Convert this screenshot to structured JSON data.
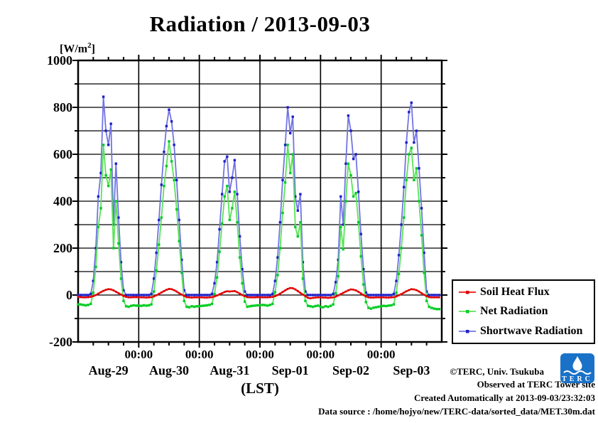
{
  "title": "Radiation / 2013-09-03",
  "y_axis": {
    "unit_prefix": "[W/m",
    "unit_sup": "2",
    "unit_suffix": "]"
  },
  "x_axis": {
    "time_tick_label": "00:00",
    "axis_label": "(LST)"
  },
  "credits": {
    "line1": "©TERC, Univ. Tsukuba",
    "line2": "Observed at TERC Tower site",
    "line3": "Created Automatically at 2013-09-03/23:32:03",
    "line4": "Data source : /home/hojyo/new/TERC-data/sorted_data/MET.30m.dat"
  },
  "logo": {
    "text": "TERC",
    "color": "#1a72c8"
  },
  "chart_data": {
    "type": "line",
    "title": "Radiation / 2013-09-03",
    "ylabel": "[W/m2]",
    "xlabel": "(LST)",
    "ylim": [
      -200,
      1000
    ],
    "y_major_ticks": [
      1000,
      800,
      600,
      400,
      200,
      0,
      -200
    ],
    "y_minor_step": 100,
    "grid": true,
    "grid_step_y": 100,
    "xlim": [
      0,
      144
    ],
    "x_unit": "hours since 2013-08-29 00:00 LST",
    "x_start": 0,
    "x_step_hours": 1,
    "x_minor_tick_hours": 6,
    "x_midnight_ticks": [
      24,
      48,
      72,
      96,
      120
    ],
    "x_day_labels": [
      "Aug-29",
      "Aug-30",
      "Aug-31",
      "Sep-01",
      "Sep-02",
      "Sep-03"
    ],
    "legend_position": "outside-right-bottom",
    "series": [
      {
        "name": "Soil Heat Flux",
        "line_color": "#ee1212",
        "marker_color": "#dd0000",
        "line_width": 2.4,
        "marker_size": 2.6,
        "values": [
          -8,
          -9,
          -10,
          -10,
          -9,
          -8,
          -5,
          0,
          6,
          12,
          18,
          22,
          25,
          24,
          20,
          14,
          8,
          2,
          -4,
          -8,
          -10,
          -10,
          -9,
          -9,
          -9,
          -10,
          -10,
          -11,
          -10,
          -9,
          -6,
          -1,
          5,
          11,
          17,
          22,
          26,
          25,
          21,
          15,
          8,
          2,
          -4,
          -9,
          -10,
          -11,
          -10,
          -10,
          -10,
          -10,
          -11,
          -11,
          -10,
          -9,
          -6,
          -2,
          3,
          8,
          13,
          16,
          15,
          16,
          17,
          12,
          6,
          0,
          -5,
          -9,
          -10,
          -10,
          -10,
          -9,
          -9,
          -10,
          -10,
          -10,
          -9,
          -8,
          -5,
          0,
          6,
          13,
          20,
          26,
          30,
          29,
          24,
          17,
          9,
          2,
          -5,
          -12,
          -14,
          -12,
          -11,
          -10,
          -10,
          -11,
          -11,
          -12,
          -11,
          -10,
          -7,
          -2,
          4,
          9,
          15,
          20,
          24,
          23,
          20,
          14,
          7,
          0,
          -6,
          -10,
          -11,
          -11,
          -10,
          -10,
          -10,
          -10,
          -11,
          -11,
          -10,
          -9,
          -6,
          -1,
          4,
          10,
          16,
          21,
          25,
          24,
          21,
          15,
          8,
          1,
          -5,
          -9,
          -10,
          -10,
          -10,
          -10
        ]
      },
      {
        "name": "Net Radiation",
        "line_color": "#58e358",
        "marker_color": "#00cc22",
        "line_width": 1.8,
        "marker_size": 3.4,
        "values": [
          -40,
          -40,
          -42,
          -44,
          -42,
          -38,
          10,
          120,
          290,
          370,
          640,
          510,
          465,
          535,
          200,
          400,
          220,
          70,
          -25,
          -48,
          -50,
          -46,
          -44,
          -45,
          -45,
          -46,
          -44,
          -45,
          -44,
          -40,
          15,
          105,
          215,
          330,
          465,
          550,
          655,
          570,
          490,
          365,
          230,
          95,
          -25,
          -50,
          -52,
          -48,
          -50,
          -48,
          -48,
          -46,
          -45,
          -44,
          -42,
          -38,
          5,
          75,
          185,
          305,
          420,
          465,
          320,
          370,
          440,
          310,
          160,
          50,
          -28,
          -50,
          -48,
          -46,
          -45,
          -44,
          -44,
          -42,
          -43,
          -45,
          -42,
          -38,
          12,
          85,
          200,
          350,
          480,
          640,
          520,
          600,
          290,
          250,
          310,
          70,
          -25,
          -46,
          -48,
          -50,
          -47,
          -45,
          -50,
          -52,
          -48,
          -50,
          -46,
          -40,
          8,
          80,
          290,
          195,
          400,
          560,
          510,
          420,
          435,
          310,
          165,
          45,
          -30,
          -55,
          -58,
          -54,
          -52,
          -50,
          -48,
          -46,
          -47,
          -45,
          -44,
          -40,
          10,
          90,
          200,
          330,
          490,
          600,
          627,
          490,
          540,
          400,
          255,
          95,
          -25,
          -50,
          -55,
          -58,
          -60,
          -60
        ]
      },
      {
        "name": "Shortwave Radiation",
        "line_color": "#7173e6",
        "marker_color": "#1f1fc8",
        "line_width": 1.8,
        "marker_size": 3.4,
        "values": [
          0,
          0,
          0,
          0,
          0,
          5,
          60,
          200,
          420,
          520,
          845,
          700,
          640,
          730,
          300,
          560,
          330,
          140,
          20,
          0,
          0,
          0,
          0,
          0,
          0,
          0,
          0,
          0,
          0,
          5,
          70,
          180,
          320,
          470,
          610,
          720,
          790,
          740,
          640,
          490,
          320,
          150,
          20,
          0,
          0,
          0,
          0,
          0,
          0,
          0,
          0,
          0,
          0,
          5,
          50,
          140,
          280,
          430,
          570,
          590,
          440,
          500,
          575,
          430,
          250,
          110,
          15,
          0,
          0,
          0,
          0,
          0,
          0,
          0,
          0,
          0,
          0,
          5,
          60,
          160,
          310,
          490,
          640,
          800,
          690,
          760,
          420,
          360,
          430,
          140,
          15,
          0,
          0,
          0,
          0,
          0,
          0,
          0,
          0,
          0,
          0,
          5,
          55,
          150,
          420,
          300,
          560,
          765,
          700,
          580,
          600,
          440,
          260,
          110,
          10,
          0,
          0,
          0,
          0,
          0,
          0,
          0,
          0,
          0,
          0,
          5,
          60,
          170,
          300,
          460,
          650,
          780,
          820,
          650,
          700,
          540,
          370,
          180,
          15,
          0,
          0,
          0,
          0,
          0
        ]
      }
    ]
  }
}
